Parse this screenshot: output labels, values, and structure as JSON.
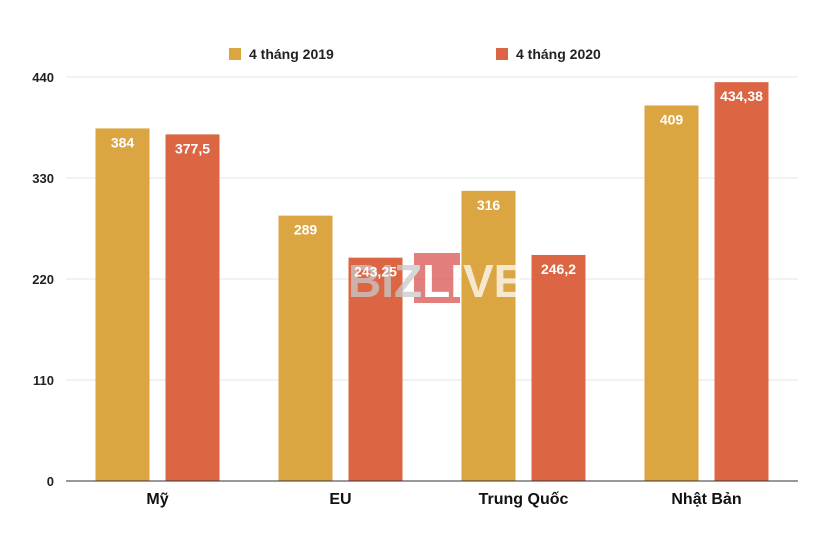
{
  "chart_data": {
    "type": "bar",
    "categories": [
      "Mỹ",
      "EU",
      "Trung Quốc",
      "Nhật Bản"
    ],
    "series": [
      {
        "name": "4 tháng 2019",
        "values": [
          384,
          289,
          316,
          409
        ],
        "labels": [
          "384",
          "289",
          "316",
          "409"
        ],
        "color": "#DBA542"
      },
      {
        "name": "4 tháng 2020",
        "values": [
          377.5,
          243.25,
          246.2,
          434.38
        ],
        "labels": [
          "377,5",
          "243,25",
          "246,2",
          "434,38"
        ],
        "color": "#DC6644"
      }
    ],
    "yticks": [
      0,
      110,
      220,
      330,
      440
    ],
    "ylim": [
      0,
      440
    ],
    "grid": true,
    "legend": "top-center"
  },
  "watermark": {
    "part1": "BIZ",
    "part2": "LIVE",
    "box_color": "#D9534F"
  }
}
